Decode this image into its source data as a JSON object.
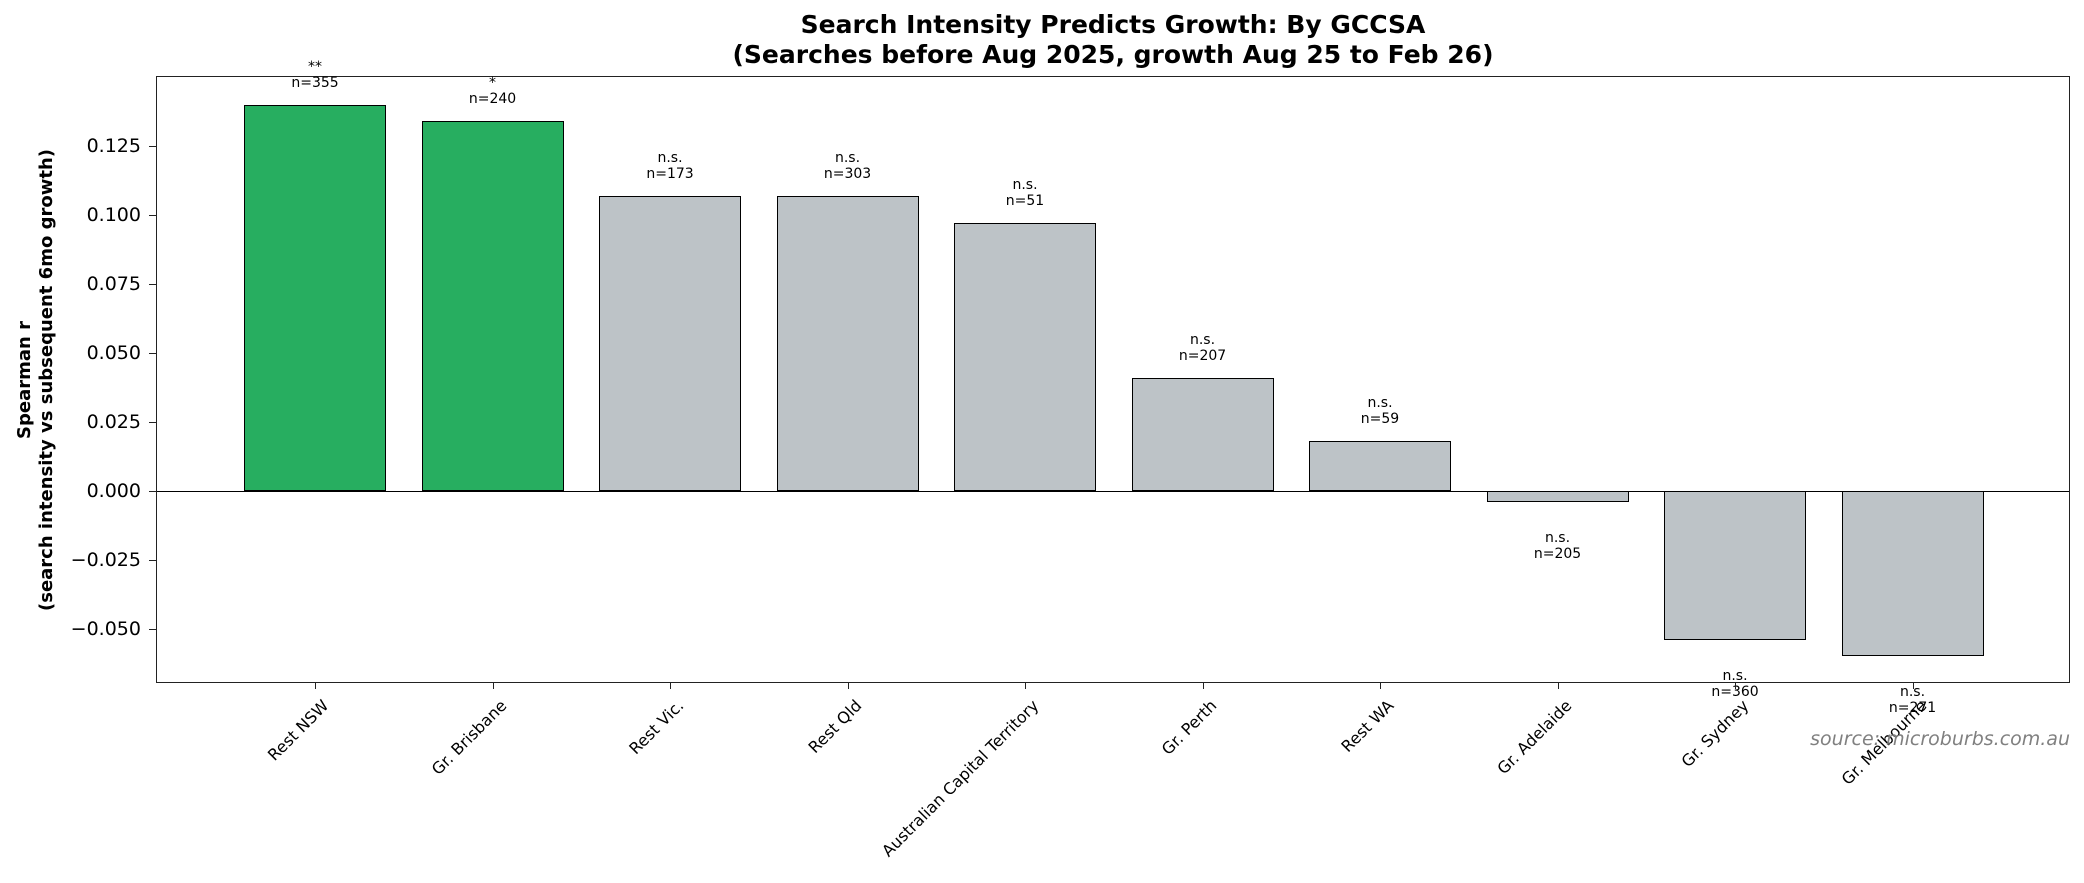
{
  "title": {
    "line1": "Search Intensity Predicts Growth: By GCCSA",
    "line2": "(Searches before Aug 2025, growth Aug 25 to Feb 26)"
  },
  "ylabel": {
    "line1": "Spearman r",
    "line2": "(search intensity vs subsequent 6mo growth)"
  },
  "source": "source: microburbs.com.au",
  "colors": {
    "significant": "#27ae60",
    "not_significant": "#bdc3c7",
    "edge": "#000000"
  },
  "chart_data": {
    "type": "bar",
    "title": "Search Intensity Predicts Growth: By GCCSA\n(Searches before Aug 2025, growth Aug 25 to Feb 26)",
    "xlabel": "",
    "ylabel": "Spearman r\n(search intensity vs subsequent 6mo growth)",
    "ylim": [
      -0.07,
      0.15
    ],
    "yticks": [
      -0.05,
      -0.025,
      0.0,
      0.025,
      0.05,
      0.075,
      0.1,
      0.125
    ],
    "ytick_labels": [
      "−0.050",
      "−0.025",
      "0.000",
      "0.025",
      "0.050",
      "0.075",
      "0.100",
      "0.125"
    ],
    "grid": false,
    "legend": null,
    "categories": [
      "Rest NSW",
      "Gr. Brisbane",
      "Rest Vic.",
      "Rest Qld",
      "Australian Capital Territory",
      "Gr. Perth",
      "Rest WA",
      "Gr. Adelaide",
      "Gr. Sydney",
      "Gr. Melbourne"
    ],
    "values": [
      0.14,
      0.134,
      0.107,
      0.107,
      0.097,
      0.041,
      0.018,
      -0.004,
      -0.054,
      -0.06
    ],
    "significance": [
      "**",
      "*",
      "n.s.",
      "n.s.",
      "n.s.",
      "n.s.",
      "n.s.",
      "n.s.",
      "n.s.",
      "n.s."
    ],
    "n": [
      355,
      240,
      173,
      303,
      51,
      207,
      59,
      205,
      360,
      271
    ],
    "annotations": [
      "**\nn=355",
      "*\nn=240",
      "n.s.\nn=173",
      "n.s.\nn=303",
      "n.s.\nn=51",
      "n.s.\nn=207",
      "n.s.\nn=59",
      "n.s.\nn=205",
      "n.s.\nn=360",
      "n.s.\nn=271"
    ],
    "bar_colors": [
      "#27ae60",
      "#27ae60",
      "#bdc3c7",
      "#bdc3c7",
      "#bdc3c7",
      "#bdc3c7",
      "#bdc3c7",
      "#bdc3c7",
      "#bdc3c7",
      "#bdc3c7"
    ],
    "reference_line": 0
  }
}
